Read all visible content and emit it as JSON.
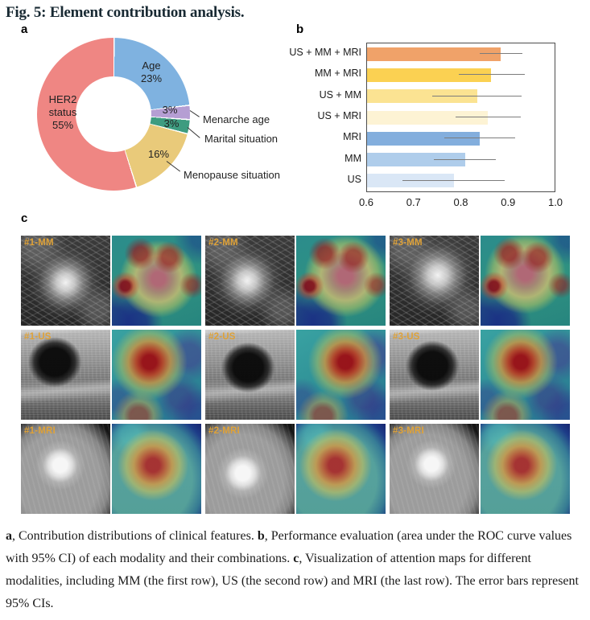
{
  "figure": {
    "title": "Fig. 5: Element contribution analysis."
  },
  "panels": {
    "a_label": "a",
    "b_label": "b",
    "c_label": "c"
  },
  "chart_data": [
    {
      "type": "pie",
      "subtype": "donut",
      "title": "Contribution distributions of clinical features",
      "start_angle_deg": 0,
      "direction": "clockwise",
      "slices": [
        {
          "label": "Age",
          "value_pct": 23,
          "color": "#7FB2E0"
        },
        {
          "label": "Menarche age",
          "value_pct": 3,
          "color": "#B59ED3"
        },
        {
          "label": "Marital situation",
          "value_pct": 3,
          "color": "#3E9C80"
        },
        {
          "label": "Menopause situation",
          "value_pct": 16,
          "color": "#E9CA7A"
        },
        {
          "label": "HER2 status",
          "value_pct": 55,
          "color": "#EF8683"
        }
      ]
    },
    {
      "type": "bar",
      "orientation": "horizontal",
      "title": "Performance evaluation (AUC with 95% CI) of each modality and their combinations",
      "categories": [
        "US + MM + MRI",
        "MM + MRI",
        "US + MM",
        "US + MRI",
        "MRI",
        "MM",
        "US"
      ],
      "values": [
        0.885,
        0.865,
        0.835,
        0.858,
        0.84,
        0.81,
        0.785
      ],
      "ci_low": [
        0.841,
        0.796,
        0.739,
        0.789,
        0.764,
        0.742,
        0.676
      ],
      "ci_high": [
        0.931,
        0.936,
        0.93,
        0.928,
        0.916,
        0.874,
        0.893
      ],
      "colors": [
        "#F0A269",
        "#FBD152",
        "#FBE392",
        "#FDF3D4",
        "#83AEDD",
        "#AFCDEB",
        "#DAE7F6"
      ],
      "xlim": [
        0.6,
        1.0
      ],
      "xticks": [
        "0.6",
        "0.7",
        "0.8",
        "0.9",
        "1.0"
      ],
      "error_bars": "95% CI",
      "grid": false,
      "legend": false
    }
  ],
  "panel_a": {
    "labels": {
      "age_line1": "Age",
      "age_line2": "23%",
      "her2_line1": "HER2",
      "her2_line2": "status",
      "her2_line3": "55%",
      "menarche_pct": "3%",
      "marital_pct": "3%",
      "menopause_pct": "16%",
      "menarche": "Menarche age",
      "marital": "Marital situation",
      "menopause": "Menopause situation"
    }
  },
  "panel_c": {
    "cells": [
      {
        "label": "#1-MM"
      },
      {
        "label": "#2-MM"
      },
      {
        "label": "#3-MM"
      },
      {
        "label": "#1-US"
      },
      {
        "label": "#2-US"
      },
      {
        "label": "#3-US"
      },
      {
        "label": "#1-MRI"
      },
      {
        "label": "#2-MRI"
      },
      {
        "label": "#3-MRI"
      }
    ],
    "label_color": "#DFA238"
  },
  "caption": {
    "a_label": "a",
    "a_text": ", Contribution distributions of clinical features. ",
    "b_label": "b",
    "b_text": ", Performance evaluation (area under the ROC curve values with 95% CI) of each modality and their combinations. ",
    "c_label": "c",
    "c_text": ", Visualization of attention maps for different modalities, including MM (the first row), US (the second row) and MRI (the last row). The error bars represent 95% CIs."
  }
}
